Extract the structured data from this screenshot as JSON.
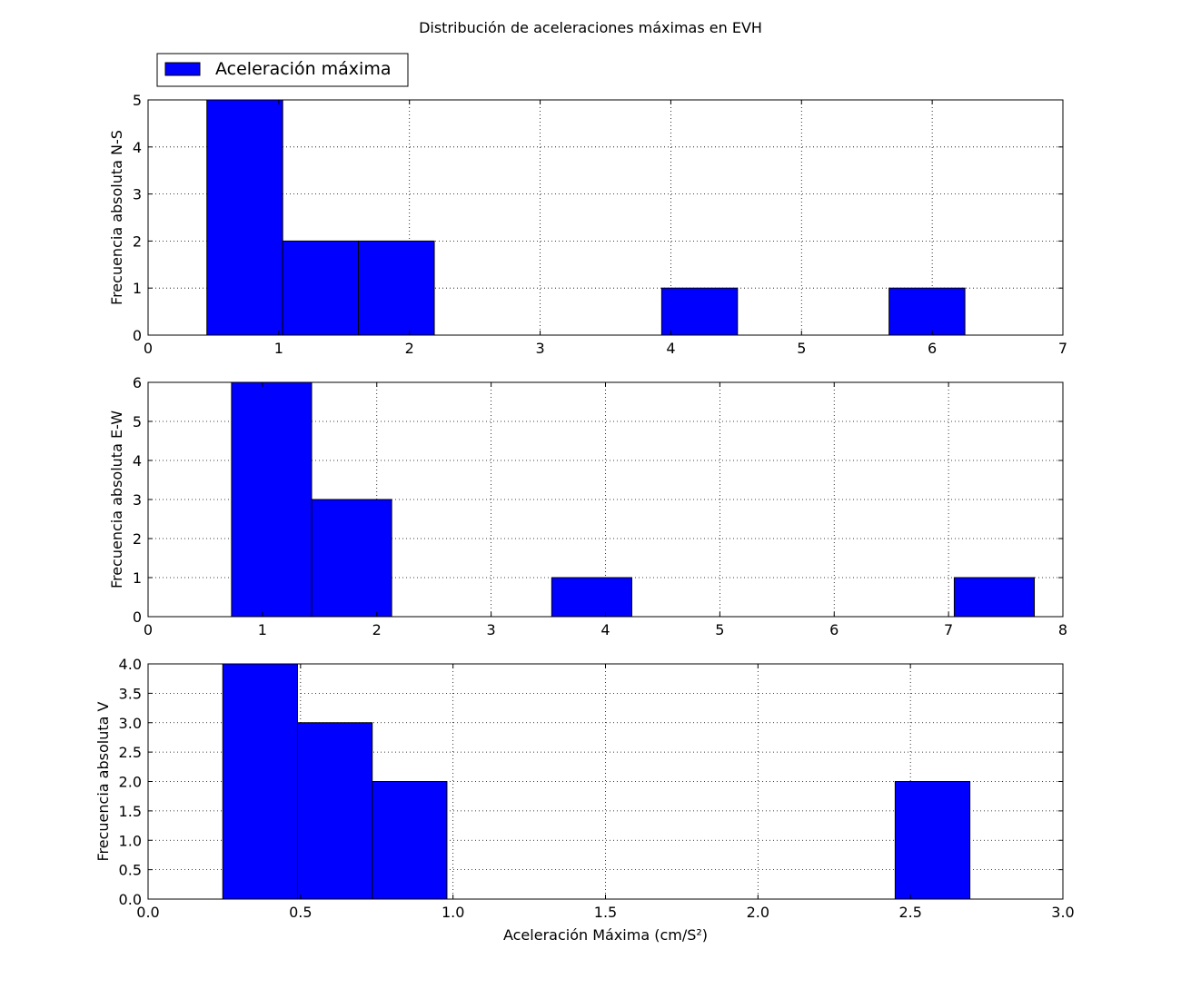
{
  "figure": {
    "title": "Distribución de aceleraciones máximas en EVH",
    "legend_label": "Aceleración máxima",
    "legend_position": "top-left",
    "bar_color": "#0000ff",
    "edge_color": "#000000"
  },
  "chart_data": [
    {
      "type": "bar",
      "subtype": "histogram",
      "title": "",
      "xlabel": "",
      "ylabel": "Frecuencia absoluta N-S",
      "xlim": [
        0,
        7
      ],
      "ylim": [
        0,
        5
      ],
      "xticks": [
        "0",
        "1",
        "2",
        "3",
        "4",
        "5",
        "6",
        "7"
      ],
      "yticks": [
        "0",
        "1",
        "2",
        "3",
        "4",
        "5"
      ],
      "grid": true,
      "bins": [
        {
          "x0": 0.45,
          "x1": 1.03,
          "count": 5
        },
        {
          "x0": 1.03,
          "x1": 1.61,
          "count": 2
        },
        {
          "x0": 1.61,
          "x1": 2.19,
          "count": 2
        },
        {
          "x0": 3.93,
          "x1": 4.51,
          "count": 1
        },
        {
          "x0": 5.67,
          "x1": 6.25,
          "count": 1
        }
      ]
    },
    {
      "type": "bar",
      "subtype": "histogram",
      "title": "",
      "xlabel": "",
      "ylabel": "Frecuencia absoluta E-W",
      "xlim": [
        0,
        8
      ],
      "ylim": [
        0,
        6
      ],
      "xticks": [
        "0",
        "1",
        "2",
        "3",
        "4",
        "5",
        "6",
        "7",
        "8"
      ],
      "yticks": [
        "0",
        "1",
        "2",
        "3",
        "4",
        "5",
        "6"
      ],
      "grid": true,
      "bins": [
        {
          "x0": 0.73,
          "x1": 1.43,
          "count": 6
        },
        {
          "x0": 1.43,
          "x1": 2.13,
          "count": 3
        },
        {
          "x0": 3.53,
          "x1": 4.23,
          "count": 1
        },
        {
          "x0": 7.05,
          "x1": 7.75,
          "count": 1
        }
      ]
    },
    {
      "type": "bar",
      "subtype": "histogram",
      "title": "",
      "xlabel": "Aceleración Máxima (cm/S²)",
      "ylabel": "Frecuencia absoluta V",
      "xlim": [
        0,
        3
      ],
      "ylim": [
        0,
        4
      ],
      "xticks": [
        "0.0",
        "0.5",
        "1.0",
        "1.5",
        "2.0",
        "2.5",
        "3.0"
      ],
      "yticks": [
        "0.0",
        "0.5",
        "1.0",
        "1.5",
        "2.0",
        "2.5",
        "3.0",
        "3.5",
        "4.0"
      ],
      "grid": true,
      "bins": [
        {
          "x0": 0.245,
          "x1": 0.49,
          "count": 4
        },
        {
          "x0": 0.49,
          "x1": 0.735,
          "count": 3
        },
        {
          "x0": 0.735,
          "x1": 0.98,
          "count": 2
        },
        {
          "x0": 2.45,
          "x1": 2.695,
          "count": 2
        }
      ]
    }
  ]
}
